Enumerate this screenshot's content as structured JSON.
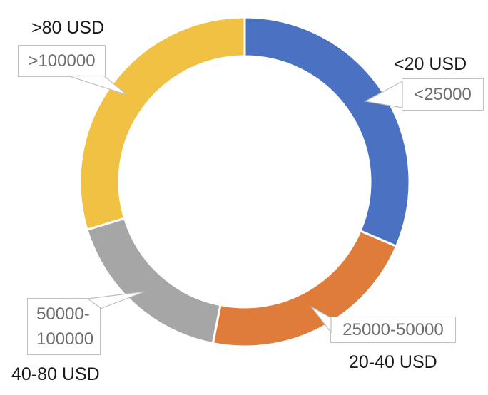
{
  "chart_data": {
    "type": "pie",
    "subtype": "donut",
    "title": "",
    "legend": "none",
    "background": "#ffffff",
    "hole_ratio": 0.76,
    "start_angle_deg": 0,
    "direction": "clockwise",
    "gap_color": "#ffffff",
    "segments": [
      {
        "label": "<20 USD",
        "callout_value": "<25000",
        "share_pct": 31.4,
        "color": "#4B72C2"
      },
      {
        "label": "20-40 USD",
        "callout_value": "25000-50000",
        "share_pct": 21.7,
        "color": "#E07C3A"
      },
      {
        "label": "40-80 USD",
        "callout_value": "50000-100000",
        "share_pct": 17.2,
        "color": "#A6A6A6"
      },
      {
        "label": ">80 USD",
        "callout_value": ">100000",
        "share_pct": 29.7,
        "color": "#F0C142"
      }
    ]
  },
  "category_labels": {
    "gt80_usd": ">80 USD",
    "lt20_usd": "<20 USD",
    "usd_20_40": "20-40 USD",
    "usd_40_80": "40-80 USD"
  },
  "callouts": {
    "gt100000": ">100000",
    "lt25000": "<25000",
    "r25000_50000": "25000-50000",
    "r50000_100000_lines": [
      "50000-",
      "100000"
    ]
  },
  "style": {
    "callout_border_color": "#bfbfbf",
    "callout_text_color": "#6e6e6e",
    "category_text_color": "#1a1a1a"
  }
}
